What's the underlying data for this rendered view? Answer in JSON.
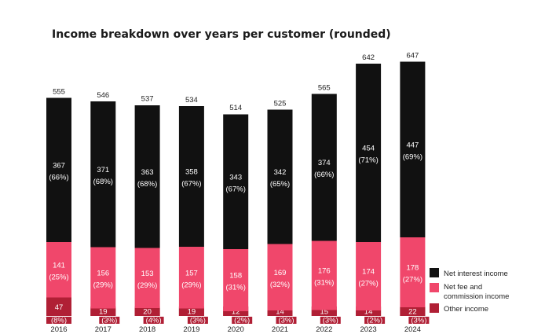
{
  "chart_data": {
    "type": "bar",
    "stacked": true,
    "title": "Income breakdown over years per customer (rounded)",
    "xlabel": "",
    "ylabel": "",
    "grid": false,
    "legend_position": "bottom-right",
    "ylim": [
      0,
      650
    ],
    "categories": [
      "2016",
      "2017",
      "2018",
      "2019",
      "2020",
      "2021",
      "2022",
      "2023",
      "2024"
    ],
    "totals": [
      555,
      546,
      537,
      534,
      514,
      525,
      565,
      642,
      647
    ],
    "series": [
      {
        "name": "Other income",
        "color": "#b01f35",
        "values": [
          47,
          19,
          20,
          19,
          12,
          14,
          15,
          14,
          22
        ],
        "percent_labels": [
          "(8%)",
          "(3%)",
          "(4%)",
          "(3%)",
          "(2%)",
          "(3%)",
          "(3%)",
          "(2%)",
          "(3%)"
        ]
      },
      {
        "name": "Net fee and commission income",
        "legend_lines": [
          "Net fee and",
          "commission income"
        ],
        "color": "#f0476b",
        "values": [
          141,
          156,
          153,
          157,
          158,
          169,
          176,
          174,
          178
        ],
        "percent_labels": [
          "(25%)",
          "(29%)",
          "(29%)",
          "(29%)",
          "(31%)",
          "(32%)",
          "(31%)",
          "(27%)",
          "(27%)"
        ]
      },
      {
        "name": "Net interest income",
        "color": "#111111",
        "values": [
          367,
          371,
          363,
          358,
          343,
          342,
          374,
          454,
          447
        ],
        "percent_labels": [
          "(66%)",
          "(68%)",
          "(68%)",
          "(67%)",
          "(67%)",
          "(65%)",
          "(66%)",
          "(71%)",
          "(69%)"
        ]
      }
    ],
    "legend_order": [
      "Net interest income",
      "Net fee and commission income",
      "Other income"
    ]
  }
}
